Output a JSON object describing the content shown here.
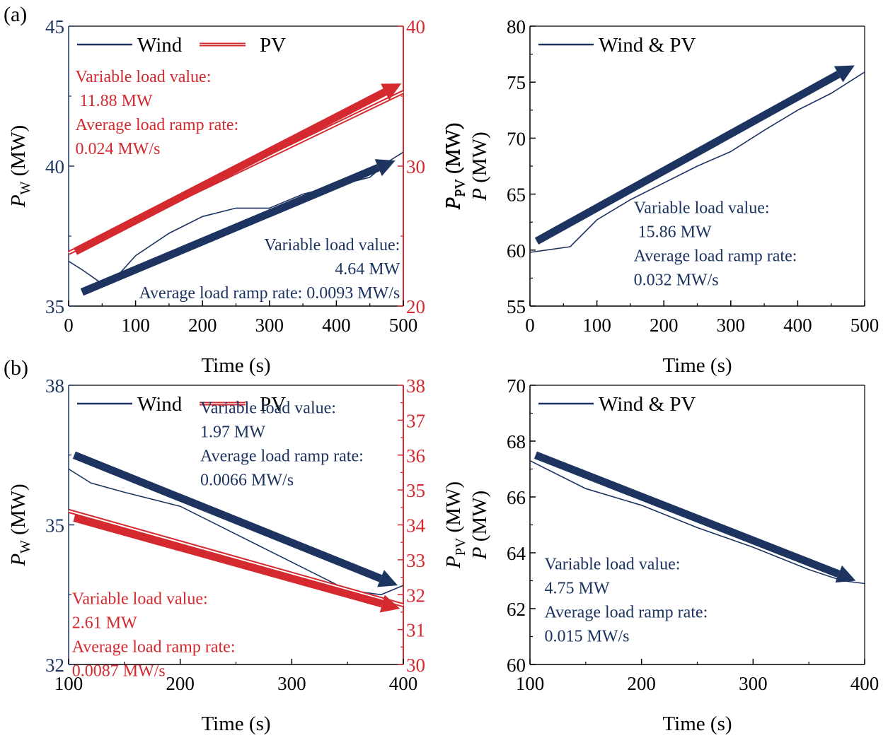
{
  "colors": {
    "wind": "#1d3461",
    "pv": "#d42a2f",
    "axis": "#000000"
  },
  "panel_labels": {
    "a": "(a)",
    "b": "(b)"
  },
  "chart_data": [
    {
      "id": "a_left",
      "type": "line",
      "xlabel": "Time (s)",
      "ylabel_left": {
        "main": "P",
        "sub": "W",
        "unit": " (MW)"
      },
      "ylabel_right": {
        "main": "P",
        "sub": "PV",
        "unit": " (MW)"
      },
      "xlim": [
        0,
        500
      ],
      "xticks": [
        0,
        100,
        200,
        300,
        400,
        500
      ],
      "ylim_left": [
        35,
        45
      ],
      "yticks_left": [
        35,
        40,
        45
      ],
      "ylim_right": [
        20,
        40
      ],
      "yticks_right": [
        20,
        30,
        40
      ],
      "legend": [
        {
          "name": "Wind",
          "color": "wind"
        },
        {
          "name": "PV",
          "color": "pv"
        }
      ],
      "series": [
        {
          "name": "Wind",
          "axis": "left",
          "color": "wind",
          "x": [
            0,
            20,
            50,
            70,
            100,
            150,
            200,
            250,
            300,
            350,
            400,
            450,
            480,
            500
          ],
          "y": [
            36.6,
            36.3,
            35.8,
            36.0,
            36.8,
            37.6,
            38.2,
            38.5,
            38.5,
            39.0,
            39.3,
            39.6,
            40.2,
            40.5
          ]
        },
        {
          "name": "PV",
          "axis": "right",
          "color": "pv",
          "x": [
            0,
            500
          ],
          "y": [
            23.8,
            35.3
          ]
        }
      ],
      "arrows": [
        {
          "color": "pv",
          "x": [
            10,
            497
          ],
          "y": [
            23.9,
            35.9
          ]
        },
        {
          "color": "wind",
          "x": [
            20,
            488
          ],
          "y": [
            35.5,
            40.2
          ]
        }
      ],
      "annotations": [
        {
          "color": "pv",
          "align": "start",
          "x": 10,
          "axis": "left",
          "y": 43.0,
          "lines": [
            "Variable load value:",
            " 11.88 MW",
            "Average load ramp rate:",
            "0.024 MW/s"
          ]
        },
        {
          "color": "wind",
          "align": "end",
          "x": 495,
          "axis": "left",
          "y": 37.0,
          "lines": [
            "Variable load value:",
            "4.64 MW",
            "Average load ramp rate: 0.0093 MW/s"
          ]
        }
      ]
    },
    {
      "id": "a_right",
      "type": "line",
      "xlabel": "Time (s)",
      "ylabel_left": {
        "main": "P",
        "sub": "",
        "unit": " (MW)"
      },
      "ylabel_right_inner": {
        "main": "P",
        "sub": "PV",
        "unit": " (MW)"
      },
      "xlim": [
        0,
        500
      ],
      "xticks": [
        0,
        100,
        200,
        300,
        400,
        500
      ],
      "ylim_left": [
        55,
        80
      ],
      "yticks_left": [
        55,
        60,
        65,
        70,
        75,
        80
      ],
      "legend": [
        {
          "name": "Wind & PV",
          "color": "wind"
        }
      ],
      "series": [
        {
          "name": "Wind & PV",
          "axis": "left",
          "color": "wind",
          "x": [
            0,
            60,
            100,
            150,
            200,
            250,
            300,
            350,
            400,
            450,
            500
          ],
          "y": [
            59.8,
            60.3,
            62.7,
            64.5,
            66.0,
            67.5,
            68.8,
            70.7,
            72.5,
            74.0,
            75.9
          ]
        }
      ],
      "arrows": [
        {
          "color": "wind",
          "x": [
            10,
            485
          ],
          "y": [
            60.8,
            76.5
          ]
        }
      ],
      "annotations": [
        {
          "color": "wind",
          "align": "start",
          "x": 155,
          "axis": "left",
          "y": 63.3,
          "lines": [
            "Variable load value:",
            " 15.86 MW",
            "Average load ramp rate:",
            "0.032 MW/s"
          ]
        }
      ]
    },
    {
      "id": "b_left",
      "type": "line",
      "xlabel": "Time (s)",
      "ylabel_left": {
        "main": "P",
        "sub": "W",
        "unit": " (MW)"
      },
      "ylabel_right": {
        "main": "P",
        "sub": "PV",
        "unit": " (MW)"
      },
      "xlim": [
        100,
        400
      ],
      "xticks": [
        100,
        200,
        300,
        400
      ],
      "ylim_left": [
        32,
        38
      ],
      "yticks_left": [
        32,
        35,
        38
      ],
      "ylim_right": [
        30,
        38
      ],
      "yticks_right": [
        30,
        31,
        32,
        33,
        34,
        35,
        36,
        37,
        38
      ],
      "legend": [
        {
          "name": "Wind",
          "color": "wind"
        },
        {
          "name": "PV",
          "color": "pv"
        }
      ],
      "series": [
        {
          "name": "Wind",
          "axis": "left",
          "color": "wind",
          "x": [
            100,
            120,
            150,
            200,
            250,
            300,
            350,
            380,
            400
          ],
          "y": [
            36.2,
            35.9,
            35.7,
            35.4,
            34.8,
            34.2,
            33.6,
            33.5,
            33.7
          ]
        },
        {
          "name": "PV",
          "axis": "right",
          "color": "pv",
          "x": [
            100,
            400
          ],
          "y": [
            34.4,
            31.7
          ]
        }
      ],
      "arrows": [
        {
          "color": "pv",
          "x": [
            105,
            397
          ],
          "y": [
            34.2,
            31.6
          ]
        },
        {
          "color": "wind",
          "x": [
            105,
            395
          ],
          "y": [
            36.5,
            33.7
          ]
        }
      ],
      "annotations": [
        {
          "color": "wind",
          "align": "start",
          "x": 218,
          "axis": "left",
          "y": 37.4,
          "lines": [
            "Variable load value:",
            "1.97 MW",
            "Average load ramp rate:",
            "0.0066 MW/s"
          ]
        },
        {
          "color": "pv",
          "align": "start",
          "x": 103,
          "axis": "left",
          "y": 33.3,
          "lines": [
            "Variable load value:",
            "2.61 MW",
            "Average load ramp rate:",
            "0.0087 MW/s"
          ]
        }
      ]
    },
    {
      "id": "b_right",
      "type": "line",
      "xlabel": "Time (s)",
      "ylabel_left": {
        "main": "P",
        "sub": "",
        "unit": " (MW)"
      },
      "xlim": [
        100,
        400
      ],
      "xticks": [
        100,
        200,
        300,
        400
      ],
      "ylim_left": [
        60,
        70
      ],
      "yticks_left": [
        60,
        62,
        64,
        66,
        68,
        70
      ],
      "legend": [
        {
          "name": "Wind & PV",
          "color": "wind"
        }
      ],
      "series": [
        {
          "name": "Wind & PV",
          "axis": "left",
          "color": "wind",
          "x": [
            100,
            150,
            200,
            250,
            300,
            350,
            380,
            400
          ],
          "y": [
            67.3,
            66.3,
            65.7,
            64.9,
            64.2,
            63.4,
            63.0,
            62.9
          ]
        }
      ],
      "arrows": [
        {
          "color": "wind",
          "x": [
            105,
            392
          ],
          "y": [
            67.5,
            63.0
          ]
        }
      ],
      "annotations": [
        {
          "color": "wind",
          "align": "start",
          "x": 113,
          "axis": "left",
          "y": 63.4,
          "lines": [
            "Variable load value:",
            "4.75 MW",
            "Average load ramp rate:",
            "0.015 MW/s"
          ]
        }
      ]
    }
  ]
}
